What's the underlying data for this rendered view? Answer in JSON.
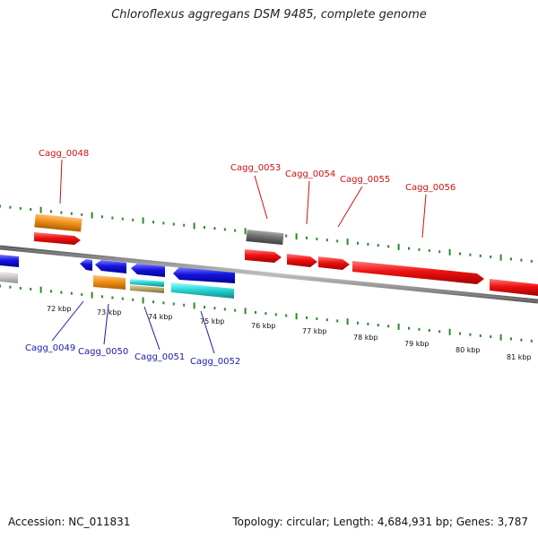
{
  "title": "Chloroflexus aggregans DSM 9485, complete genome",
  "footer": {
    "accession": "Accession: NC_011831",
    "topology": "Topology: circular; Length: 4,684,931 bp; Genes: 3,787"
  },
  "colors": {
    "forward_cds": "#ee1111",
    "reverse_cds": "#1515e0",
    "orange": "#f0901a",
    "cyan": "#2ad6d6",
    "gray": "#707070",
    "light_gray": "#c8c8c8",
    "khaki": "#b8a86a",
    "tick": "#2a8a2a",
    "backbone": "#8a8a8a",
    "top_label": "#cc1111",
    "bottom_label": "#1a1aa8"
  },
  "kbp_labels": [
    "72 kbp",
    "73 kbp",
    "74 kbp",
    "75 kbp",
    "76 kbp",
    "77 kbp",
    "78 kbp",
    "79 kbp",
    "80 kbp",
    "81 kbp"
  ],
  "top_gene_labels": [
    "Cagg_0048",
    "Cagg_0053",
    "Cagg_0054",
    "Cagg_0055",
    "Cagg_0056"
  ],
  "bottom_gene_labels": [
    "Cagg_0049",
    "Cagg_0050",
    "Cagg_0051",
    "Cagg_0052"
  ]
}
